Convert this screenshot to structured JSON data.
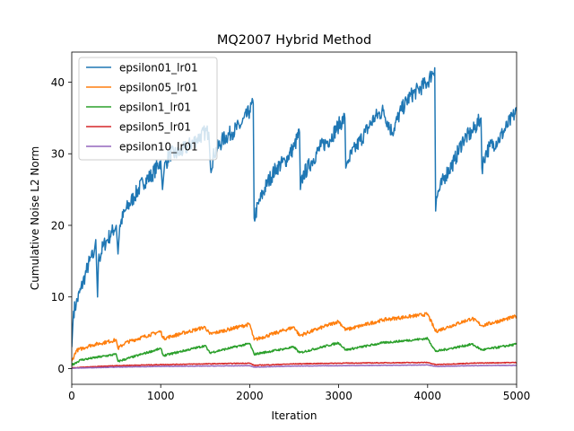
{
  "chart_data": {
    "type": "line",
    "title": "MQ2007 Hybrid Method",
    "xlabel": "Iteration",
    "ylabel": "Cumulative Noise L2 Norm",
    "xlim": [
      0,
      5000
    ],
    "ylim": [
      -2.2,
      44.2
    ],
    "xticks": [
      0,
      1000,
      2000,
      3000,
      4000,
      5000
    ],
    "yticks": [
      0,
      10,
      20,
      30,
      40
    ],
    "grid": false,
    "legend_position": "top-left",
    "series": [
      {
        "name": "epsilon01_lr01",
        "color": "#1f77b4",
        "points": [
          [
            0,
            3
          ],
          [
            20,
            8
          ],
          [
            50,
            9
          ],
          [
            100,
            11
          ],
          [
            150,
            13
          ],
          [
            200,
            15
          ],
          [
            250,
            16
          ],
          [
            270,
            18
          ],
          [
            290,
            10
          ],
          [
            300,
            15
          ],
          [
            350,
            17
          ],
          [
            400,
            18
          ],
          [
            450,
            19
          ],
          [
            500,
            20
          ],
          [
            520,
            16
          ],
          [
            540,
            20
          ],
          [
            600,
            22
          ],
          [
            700,
            24
          ],
          [
            800,
            26
          ],
          [
            900,
            27
          ],
          [
            1000,
            29
          ],
          [
            1020,
            25
          ],
          [
            1040,
            28
          ],
          [
            1100,
            30
          ],
          [
            1200,
            30
          ],
          [
            1300,
            31
          ],
          [
            1400,
            32
          ],
          [
            1500,
            33
          ],
          [
            1540,
            33
          ],
          [
            1560,
            28
          ],
          [
            1600,
            30
          ],
          [
            1700,
            32
          ],
          [
            1800,
            33
          ],
          [
            1900,
            34
          ],
          [
            2000,
            36
          ],
          [
            2040,
            37
          ],
          [
            2050,
            21
          ],
          [
            2100,
            23
          ],
          [
            2200,
            26
          ],
          [
            2300,
            28
          ],
          [
            2400,
            29
          ],
          [
            2500,
            31
          ],
          [
            2560,
            33
          ],
          [
            2570,
            25
          ],
          [
            2600,
            27
          ],
          [
            2700,
            29
          ],
          [
            2800,
            31
          ],
          [
            2900,
            32
          ],
          [
            3000,
            34
          ],
          [
            3070,
            35
          ],
          [
            3080,
            28
          ],
          [
            3100,
            29
          ],
          [
            3200,
            31
          ],
          [
            3300,
            33
          ],
          [
            3400,
            35
          ],
          [
            3500,
            36
          ],
          [
            3600,
            33
          ],
          [
            3700,
            36
          ],
          [
            3800,
            38
          ],
          [
            3900,
            39
          ],
          [
            4000,
            40
          ],
          [
            4080,
            42
          ],
          [
            4090,
            22
          ],
          [
            4100,
            24
          ],
          [
            4200,
            27
          ],
          [
            4300,
            29
          ],
          [
            4400,
            32
          ],
          [
            4500,
            33
          ],
          [
            4600,
            35
          ],
          [
            4610,
            28
          ],
          [
            4650,
            30
          ],
          [
            4700,
            31
          ],
          [
            4800,
            32
          ],
          [
            4900,
            34
          ],
          [
            5000,
            36
          ]
        ]
      },
      {
        "name": "epsilon05_lr01",
        "color": "#ff7f0e",
        "points": [
          [
            0,
            1
          ],
          [
            50,
            2.5
          ],
          [
            200,
            3.2
          ],
          [
            500,
            4.0
          ],
          [
            520,
            2.8
          ],
          [
            600,
            3.6
          ],
          [
            1000,
            5.2
          ],
          [
            1030,
            4.2
          ],
          [
            1500,
            5.8
          ],
          [
            1550,
            4.8
          ],
          [
            2000,
            6.2
          ],
          [
            2050,
            4.0
          ],
          [
            2500,
            5.8
          ],
          [
            2560,
            4.6
          ],
          [
            3000,
            6.6
          ],
          [
            3080,
            5.4
          ],
          [
            3500,
            6.8
          ],
          [
            4000,
            7.6
          ],
          [
            4090,
            5.2
          ],
          [
            4500,
            7.0
          ],
          [
            4610,
            6.0
          ],
          [
            5000,
            7.3
          ]
        ]
      },
      {
        "name": "epsilon1_lr01",
        "color": "#2ca02c",
        "points": [
          [
            0,
            0.5
          ],
          [
            100,
            1.2
          ],
          [
            500,
            2.0
          ],
          [
            520,
            1.0
          ],
          [
            1000,
            2.8
          ],
          [
            1030,
            1.8
          ],
          [
            1500,
            3.2
          ],
          [
            1550,
            2.2
          ],
          [
            2000,
            3.5
          ],
          [
            2050,
            2.0
          ],
          [
            2500,
            3.0
          ],
          [
            2560,
            2.2
          ],
          [
            3000,
            3.6
          ],
          [
            3080,
            2.6
          ],
          [
            3500,
            3.6
          ],
          [
            4000,
            4.2
          ],
          [
            4090,
            2.4
          ],
          [
            4500,
            3.4
          ],
          [
            4610,
            2.6
          ],
          [
            5000,
            3.4
          ]
        ]
      },
      {
        "name": "epsilon5_lr01",
        "color": "#d62728",
        "points": [
          [
            0,
            0.1
          ],
          [
            500,
            0.4
          ],
          [
            1000,
            0.55
          ],
          [
            1500,
            0.65
          ],
          [
            2000,
            0.75
          ],
          [
            2050,
            0.45
          ],
          [
            2500,
            0.65
          ],
          [
            3000,
            0.75
          ],
          [
            3500,
            0.8
          ],
          [
            4000,
            0.85
          ],
          [
            4090,
            0.55
          ],
          [
            4500,
            0.75
          ],
          [
            5000,
            0.85
          ]
        ]
      },
      {
        "name": "epsilon10_lr01",
        "color": "#9467bd",
        "points": [
          [
            0,
            0.05
          ],
          [
            500,
            0.2
          ],
          [
            1000,
            0.3
          ],
          [
            1500,
            0.35
          ],
          [
            2000,
            0.4
          ],
          [
            2050,
            0.2
          ],
          [
            2500,
            0.35
          ],
          [
            3000,
            0.4
          ],
          [
            3500,
            0.45
          ],
          [
            4000,
            0.5
          ],
          [
            4090,
            0.3
          ],
          [
            4500,
            0.4
          ],
          [
            5000,
            0.45
          ]
        ]
      }
    ]
  }
}
